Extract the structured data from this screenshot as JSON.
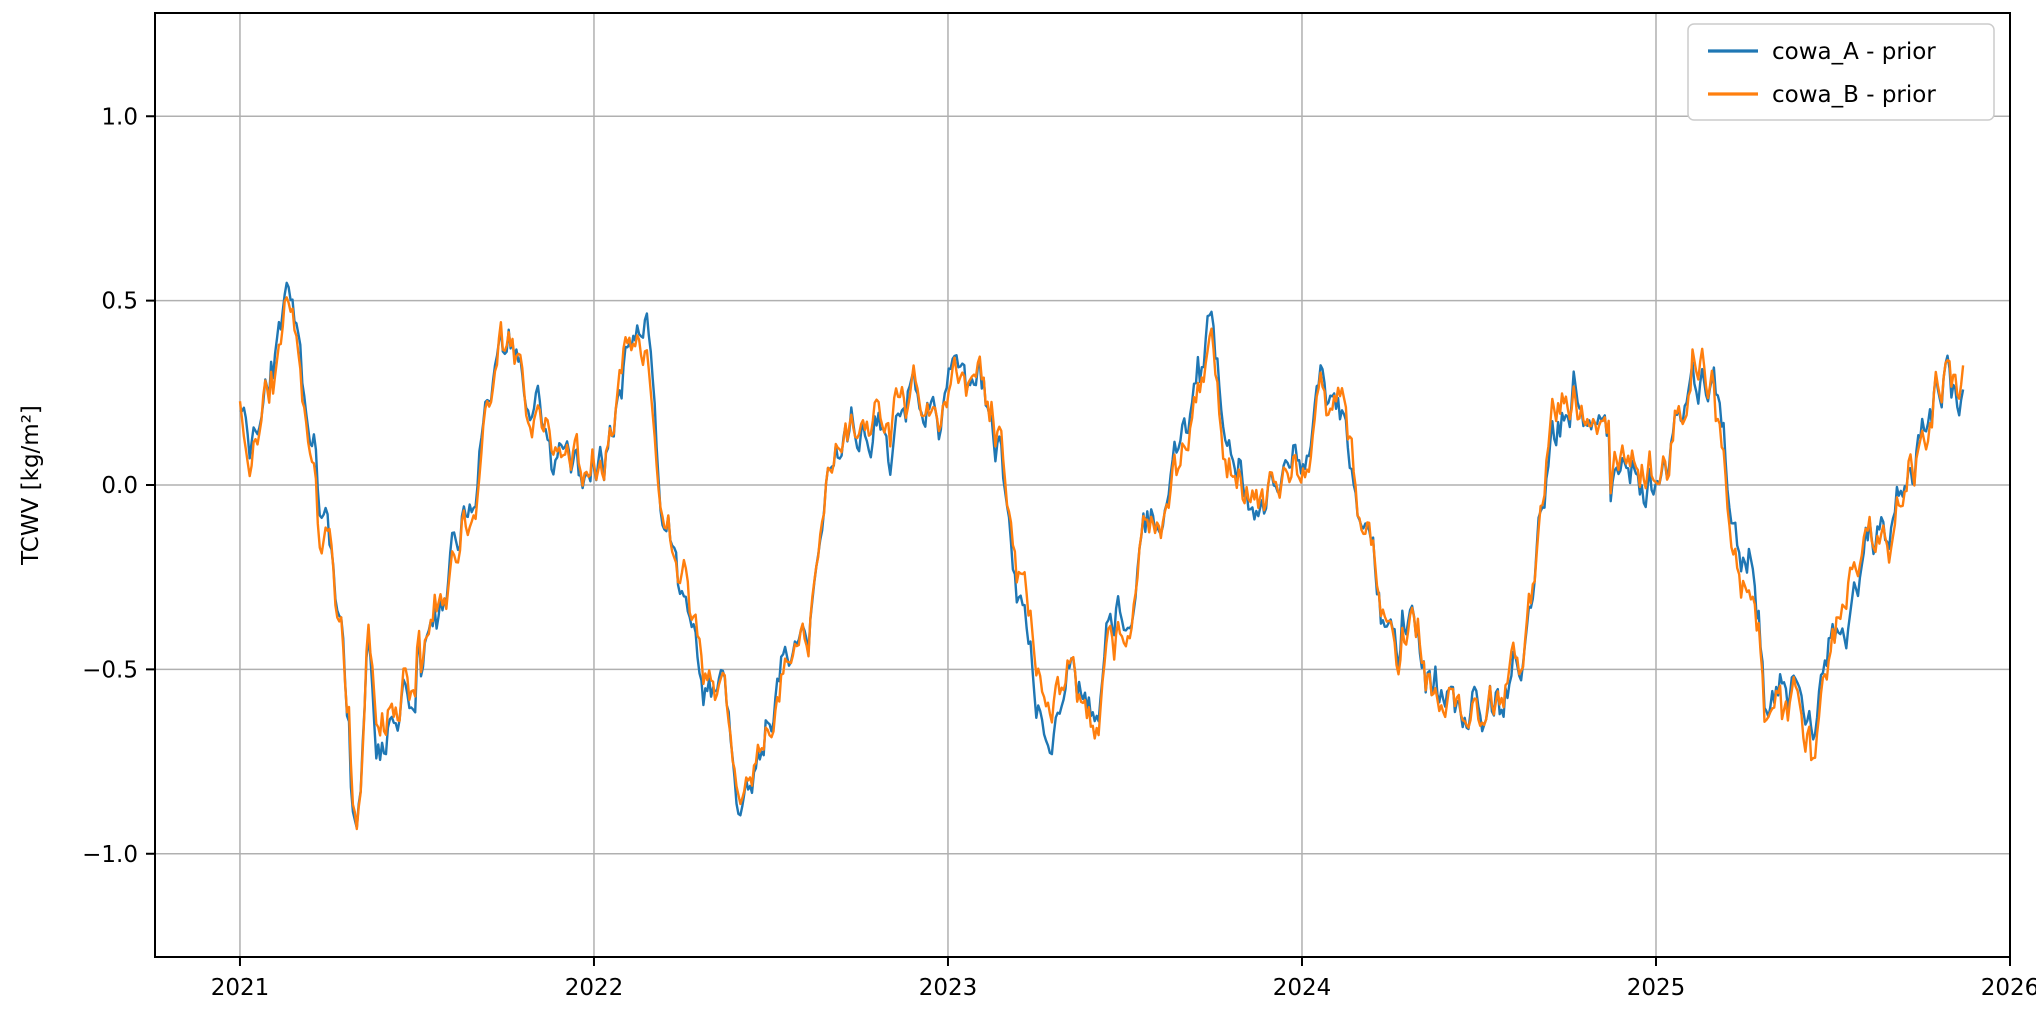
{
  "figure": {
    "background": "#ffffff"
  },
  "chart_data": {
    "type": "line",
    "title": "",
    "xlabel": "",
    "ylabel": "TCWV [kg/m²]",
    "xlim": [
      2020.76,
      2026.0
    ],
    "ylim": [
      -1.28,
      1.28
    ],
    "x_ticks": [
      2021,
      2022,
      2023,
      2024,
      2025,
      2026
    ],
    "x_tick_labels": [
      "2021",
      "2022",
      "2023",
      "2024",
      "2025",
      "2026"
    ],
    "y_ticks": [
      1.0,
      0.5,
      0.0,
      -0.5,
      -1.0
    ],
    "y_tick_labels": [
      "1.0",
      "0.5",
      "0.0",
      "−0.5",
      "−1.0"
    ],
    "grid": true,
    "grid_color": "#b0b0b0",
    "spine_color": "#000000",
    "legend": {
      "position": "upper right",
      "entries": [
        {
          "label": "cowa_A - prior",
          "color": "#1f77b4"
        },
        {
          "label": "cowa_B - prior",
          "color": "#ff7f0e"
        }
      ]
    },
    "series": [
      {
        "name": "cowa_A - prior",
        "color": "#1f77b4",
        "seed": 7
      },
      {
        "name": "cowa_B - prior",
        "color": "#ff7f0e",
        "seed": 13
      }
    ],
    "x_range_data": [
      2021.0,
      2025.87
    ],
    "sample_step_years": 0.0055,
    "noise": {
      "common_seed": 3,
      "phi": 0.88,
      "sigma": 0.055,
      "indep_scale": 0.4,
      "spike_prob": 0.025,
      "spike_mult": 3
    },
    "seasonal_anchors": [
      [
        2021.0,
        0.2
      ],
      [
        2021.03,
        0.1
      ],
      [
        2021.06,
        0.22
      ],
      [
        2021.1,
        0.3
      ],
      [
        2021.13,
        0.58
      ],
      [
        2021.16,
        0.38
      ],
      [
        2021.19,
        0.1
      ],
      [
        2021.22,
        -0.15
      ],
      [
        2021.26,
        -0.35
      ],
      [
        2021.3,
        -0.6
      ],
      [
        2021.33,
        -0.9
      ],
      [
        2021.36,
        -0.45
      ],
      [
        2021.4,
        -0.68
      ],
      [
        2021.44,
        -0.55
      ],
      [
        2021.48,
        -0.5
      ],
      [
        2021.52,
        -0.42
      ],
      [
        2021.56,
        -0.38
      ],
      [
        2021.6,
        -0.22
      ],
      [
        2021.64,
        -0.12
      ],
      [
        2021.68,
        0.02
      ],
      [
        2021.72,
        0.22
      ],
      [
        2021.76,
        0.32
      ],
      [
        2021.8,
        0.33
      ],
      [
        2021.84,
        0.22
      ],
      [
        2021.88,
        0.12
      ],
      [
        2021.92,
        0.05
      ],
      [
        2021.96,
        0.02
      ],
      [
        2022.0,
        0.1
      ],
      [
        2022.04,
        0.18
      ],
      [
        2022.08,
        0.28
      ],
      [
        2022.12,
        0.4
      ],
      [
        2022.15,
        0.42
      ],
      [
        2022.18,
        0.15
      ],
      [
        2022.22,
        -0.08
      ],
      [
        2022.26,
        -0.3
      ],
      [
        2022.3,
        -0.5
      ],
      [
        2022.34,
        -0.52
      ],
      [
        2022.38,
        -0.62
      ],
      [
        2022.42,
        -0.85
      ],
      [
        2022.45,
        -0.98
      ],
      [
        2022.48,
        -0.8
      ],
      [
        2022.52,
        -0.58
      ],
      [
        2022.56,
        -0.48
      ],
      [
        2022.6,
        -0.38
      ],
      [
        2022.64,
        -0.18
      ],
      [
        2022.68,
        -0.02
      ],
      [
        2022.72,
        0.1
      ],
      [
        2022.76,
        0.18
      ],
      [
        2022.8,
        0.25
      ],
      [
        2022.84,
        0.15
      ],
      [
        2022.88,
        0.18
      ],
      [
        2022.92,
        0.22
      ],
      [
        2022.96,
        0.2
      ],
      [
        2023.0,
        0.24
      ],
      [
        2023.04,
        0.28
      ],
      [
        2023.08,
        0.2
      ],
      [
        2023.12,
        0.1
      ],
      [
        2023.16,
        -0.05
      ],
      [
        2023.2,
        -0.25
      ],
      [
        2023.24,
        -0.42
      ],
      [
        2023.28,
        -0.58
      ],
      [
        2023.32,
        -0.48
      ],
      [
        2023.36,
        -0.55
      ],
      [
        2023.4,
        -0.62
      ],
      [
        2023.44,
        -0.55
      ],
      [
        2023.48,
        -0.35
      ],
      [
        2023.52,
        -0.22
      ],
      [
        2023.56,
        -0.12
      ],
      [
        2023.6,
        -0.18
      ],
      [
        2023.64,
        0.0
      ],
      [
        2023.68,
        0.15
      ],
      [
        2023.72,
        0.28
      ],
      [
        2023.75,
        0.32
      ],
      [
        2023.78,
        0.2
      ],
      [
        2023.82,
        0.12
      ],
      [
        2023.86,
        0.08
      ],
      [
        2023.9,
        0.02
      ],
      [
        2023.94,
        0.08
      ],
      [
        2023.98,
        0.12
      ],
      [
        2024.02,
        0.16
      ],
      [
        2024.06,
        0.2
      ],
      [
        2024.1,
        0.1
      ],
      [
        2024.14,
        0.02
      ],
      [
        2024.18,
        -0.12
      ],
      [
        2024.22,
        -0.28
      ],
      [
        2024.26,
        -0.38
      ],
      [
        2024.3,
        -0.45
      ],
      [
        2024.34,
        -0.55
      ],
      [
        2024.38,
        -0.6
      ],
      [
        2024.42,
        -0.62
      ],
      [
        2024.46,
        -0.68
      ],
      [
        2024.5,
        -0.6
      ],
      [
        2024.54,
        -0.66
      ],
      [
        2024.58,
        -0.6
      ],
      [
        2024.62,
        -0.48
      ],
      [
        2024.66,
        -0.25
      ],
      [
        2024.7,
        0.05
      ],
      [
        2024.74,
        0.18
      ],
      [
        2024.78,
        0.25
      ],
      [
        2024.82,
        0.18
      ],
      [
        2024.86,
        0.08
      ],
      [
        2024.9,
        0.02
      ],
      [
        2024.94,
        0.0
      ],
      [
        2024.98,
        0.04
      ],
      [
        2025.02,
        0.1
      ],
      [
        2025.06,
        0.18
      ],
      [
        2025.1,
        0.3
      ],
      [
        2025.14,
        0.38
      ],
      [
        2025.18,
        0.18
      ],
      [
        2025.22,
        -0.08
      ],
      [
        2025.26,
        -0.32
      ],
      [
        2025.3,
        -0.48
      ],
      [
        2025.34,
        -0.62
      ],
      [
        2025.38,
        -0.5
      ],
      [
        2025.42,
        -0.6
      ],
      [
        2025.46,
        -0.62
      ],
      [
        2025.5,
        -0.45
      ],
      [
        2025.54,
        -0.42
      ],
      [
        2025.58,
        -0.32
      ],
      [
        2025.62,
        -0.25
      ],
      [
        2025.66,
        -0.15
      ],
      [
        2025.7,
        -0.05
      ],
      [
        2025.74,
        0.08
      ],
      [
        2025.78,
        0.22
      ],
      [
        2025.82,
        0.35
      ],
      [
        2025.85,
        0.22
      ]
    ]
  }
}
